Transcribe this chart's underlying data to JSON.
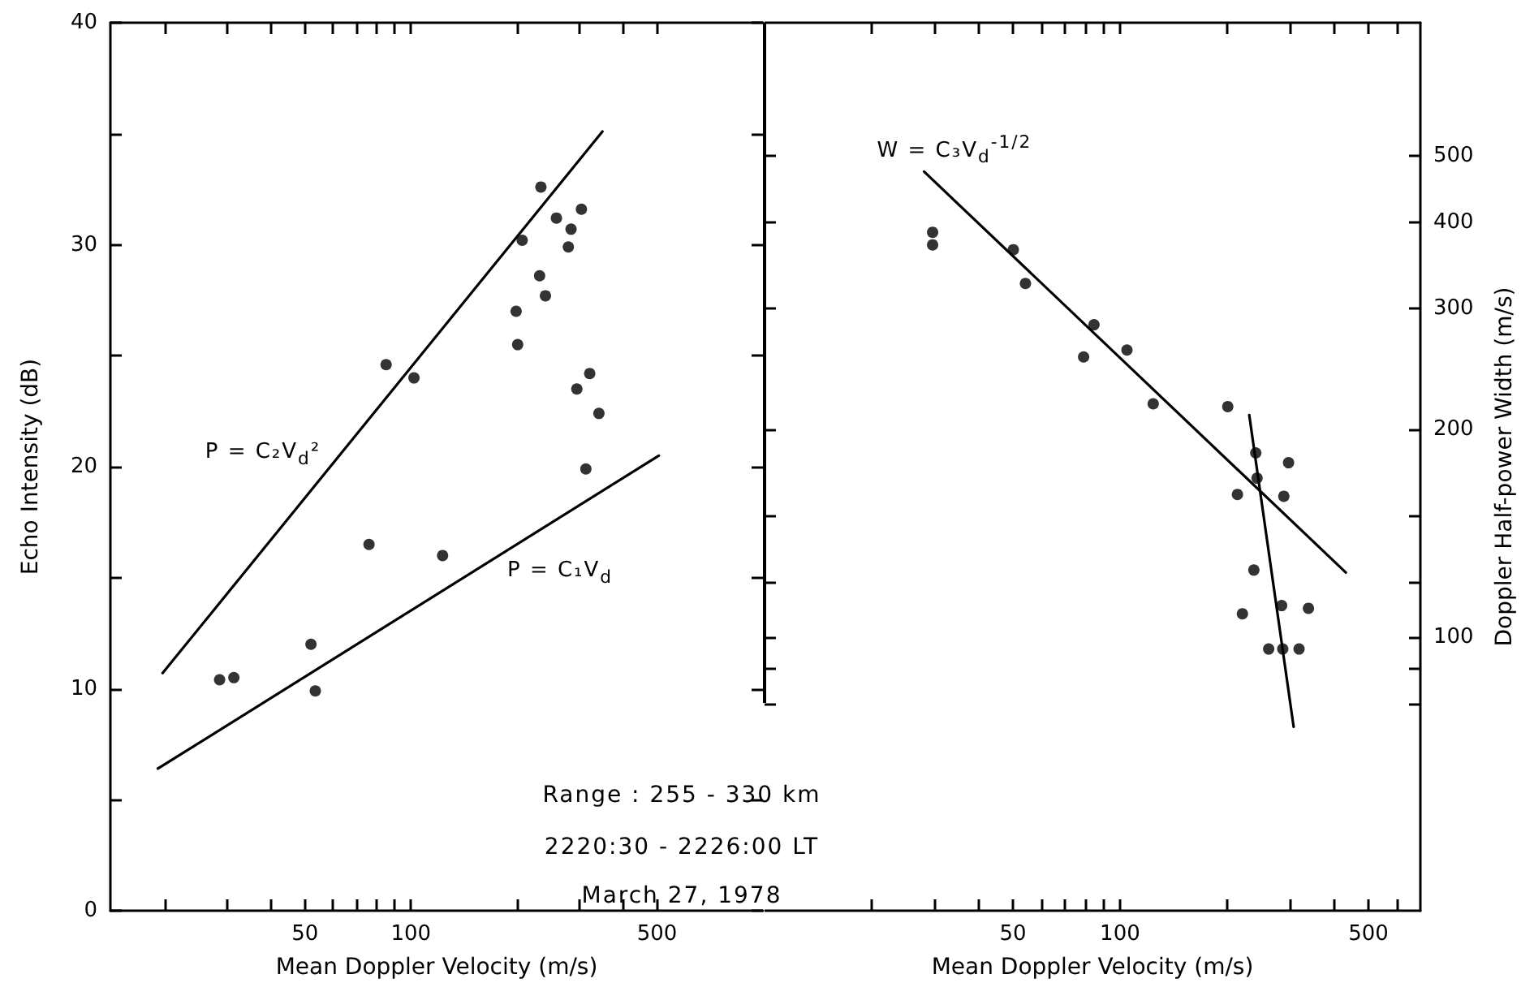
{
  "chart_data": [
    {
      "type": "scatter",
      "xlabel": "Mean Doppler Velocity (m/s)",
      "ylabel": "Echo Intensity (dB)",
      "log": "x",
      "marker": "circle",
      "grid": false,
      "xlim": [
        14,
        1000
      ],
      "xticks": [
        {
          "value": 20,
          "label": null
        },
        {
          "value": 30,
          "label": null
        },
        {
          "value": 40,
          "label": null
        },
        50,
        {
          "value": 60,
          "label": null
        },
        {
          "value": 70,
          "label": null
        },
        {
          "value": 80,
          "label": null
        },
        {
          "value": 90,
          "label": null
        },
        100,
        {
          "value": 200,
          "label": null
        },
        {
          "value": 300,
          "label": null
        },
        {
          "value": 400,
          "label": null
        },
        500
      ],
      "ylim": [
        0,
        40
      ],
      "yticks": [
        0,
        {
          "value": 5,
          "label": null
        },
        10,
        {
          "value": 15,
          "label": null
        },
        20,
        {
          "value": 25,
          "label": null
        },
        30,
        {
          "value": 35,
          "label": null
        },
        40
      ],
      "series": [
        {
          "type": "scatter",
          "color": "#000000",
          "x": [
            234,
            259,
            305,
            285,
            280,
            207,
            232,
            241,
            199,
            201,
            85,
            102,
            322,
            296,
            342,
            314,
            76,
            123,
            52,
            53.5,
            28.6,
            31.4
          ],
          "values": [
            32.6,
            31.2,
            31.6,
            30.7,
            29.9,
            30.2,
            28.6,
            27.7,
            27.0,
            25.5,
            24.6,
            24.0,
            24.2,
            23.5,
            22.4,
            19.9,
            16.5,
            16.0,
            12.0,
            9.9,
            10.4,
            10.5
          ]
        },
        {
          "type": "line",
          "marker": "none",
          "color": "#000000",
          "x": [
            19.7,
            350
          ],
          "values": [
            10.7,
            35.1
          ]
        },
        {
          "type": "line",
          "marker": "none",
          "color": "#000000",
          "x": [
            19.1,
            506
          ],
          "values": [
            6.4,
            20.5
          ]
        }
      ],
      "annotations": [
        "P = C₂V$_{d}$²",
        "P = C₁V$_{d}$",
        "Range : 255 - 330 km",
        "2220:30 - 2226:00 LT",
        "March 27, 1978"
      ]
    },
    {
      "type": "scatter",
      "xlabel": "Mean Doppler Velocity (m/s)",
      "ylabel": "Doppler Half-power Width (m/s)",
      "log": "xy",
      "marker": "circle",
      "grid": false,
      "xlim": [
        10,
        700
      ],
      "xticks": [
        {
          "value": 20,
          "label": null
        },
        {
          "value": 30,
          "label": null
        },
        {
          "value": 40,
          "label": null
        },
        50,
        {
          "value": 60,
          "label": null
        },
        {
          "value": 70,
          "label": null
        },
        {
          "value": 80,
          "label": null
        },
        {
          "value": 90,
          "label": null
        },
        100,
        {
          "value": 200,
          "label": null
        },
        {
          "value": 300,
          "label": null
        },
        {
          "value": 400,
          "label": null
        },
        500,
        {
          "value": 600,
          "label": null
        }
      ],
      "ylim": [
        40,
        780
      ],
      "yticks": [
        {
          "value": 80,
          "label": null
        },
        {
          "value": 90,
          "label": null
        },
        100,
        {
          "value": 120,
          "label": null
        },
        {
          "value": 150,
          "label": null
        },
        200,
        300,
        400,
        500
      ],
      "series": [
        {
          "type": "scatter",
          "color": "#000000",
          "x": [
            29.7,
            29.7,
            50.1,
            54.2,
            84.5,
            79,
            104.6,
            124,
            201,
            241,
            298,
            243,
            214,
            289,
            238,
            221,
            285,
            339,
            262,
            287,
            319
          ],
          "values": [
            387,
            371,
            365,
            326,
            284,
            255,
            261,
            218,
            216,
            185,
            179,
            170,
            161,
            160,
            125,
            108,
            111,
            110,
            96,
            96,
            96
          ]
        },
        {
          "type": "line",
          "marker": "none",
          "color": "#000000",
          "x": [
            28.1,
            432
          ],
          "values": [
            474,
            124
          ]
        },
        {
          "type": "line",
          "marker": "none",
          "color": "#000000",
          "x": [
            231,
            308
          ],
          "values": [
            210,
            74
          ]
        }
      ],
      "annotations": [
        "W = C₃V$_{d}$$^{-1/2}$"
      ]
    }
  ]
}
